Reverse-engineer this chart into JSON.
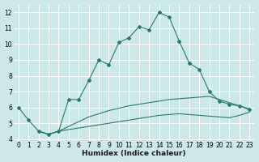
{
  "xlabel": "Humidex (Indice chaleur)",
  "bg_color": "#cce8e8",
  "grid_color": "#ffffff",
  "line_color": "#2a7a6a",
  "xlim": [
    -0.5,
    23.5
  ],
  "ylim": [
    3.9,
    12.5
  ],
  "yticks": [
    4,
    5,
    6,
    7,
    8,
    9,
    10,
    11,
    12
  ],
  "xticks": [
    0,
    1,
    2,
    3,
    4,
    5,
    6,
    7,
    8,
    9,
    10,
    11,
    12,
    13,
    14,
    15,
    16,
    17,
    18,
    19,
    20,
    21,
    22,
    23
  ],
  "line1_x": [
    0,
    1,
    2,
    3,
    4,
    5,
    6,
    7,
    8,
    9,
    10,
    11,
    12,
    13,
    14,
    15,
    16,
    17,
    18,
    19,
    20,
    21,
    22,
    23
  ],
  "line1_y": [
    6.0,
    5.2,
    4.5,
    4.3,
    4.5,
    6.5,
    6.5,
    7.7,
    9.0,
    8.7,
    10.1,
    10.4,
    11.1,
    10.9,
    12.0,
    11.7,
    10.2,
    8.8,
    8.4,
    7.0,
    6.4,
    6.2,
    6.1,
    5.9
  ],
  "line2_x": [
    2,
    3,
    4,
    5,
    6,
    7,
    8,
    9,
    10,
    11,
    12,
    13,
    14,
    15,
    16,
    17,
    18,
    19,
    20,
    21,
    22,
    23
  ],
  "line2_y": [
    4.5,
    4.3,
    4.5,
    4.8,
    5.1,
    5.4,
    5.6,
    5.8,
    5.95,
    6.1,
    6.2,
    6.3,
    6.4,
    6.5,
    6.55,
    6.6,
    6.65,
    6.7,
    6.5,
    6.3,
    6.1,
    5.85
  ],
  "line3_x": [
    2,
    3,
    4,
    5,
    6,
    7,
    8,
    9,
    10,
    11,
    12,
    13,
    14,
    15,
    16,
    17,
    18,
    19,
    20,
    21,
    22,
    23
  ],
  "line3_y": [
    4.5,
    4.3,
    4.5,
    4.6,
    4.7,
    4.8,
    4.9,
    5.0,
    5.1,
    5.2,
    5.3,
    5.4,
    5.5,
    5.55,
    5.6,
    5.55,
    5.5,
    5.45,
    5.4,
    5.35,
    5.5,
    5.7
  ]
}
